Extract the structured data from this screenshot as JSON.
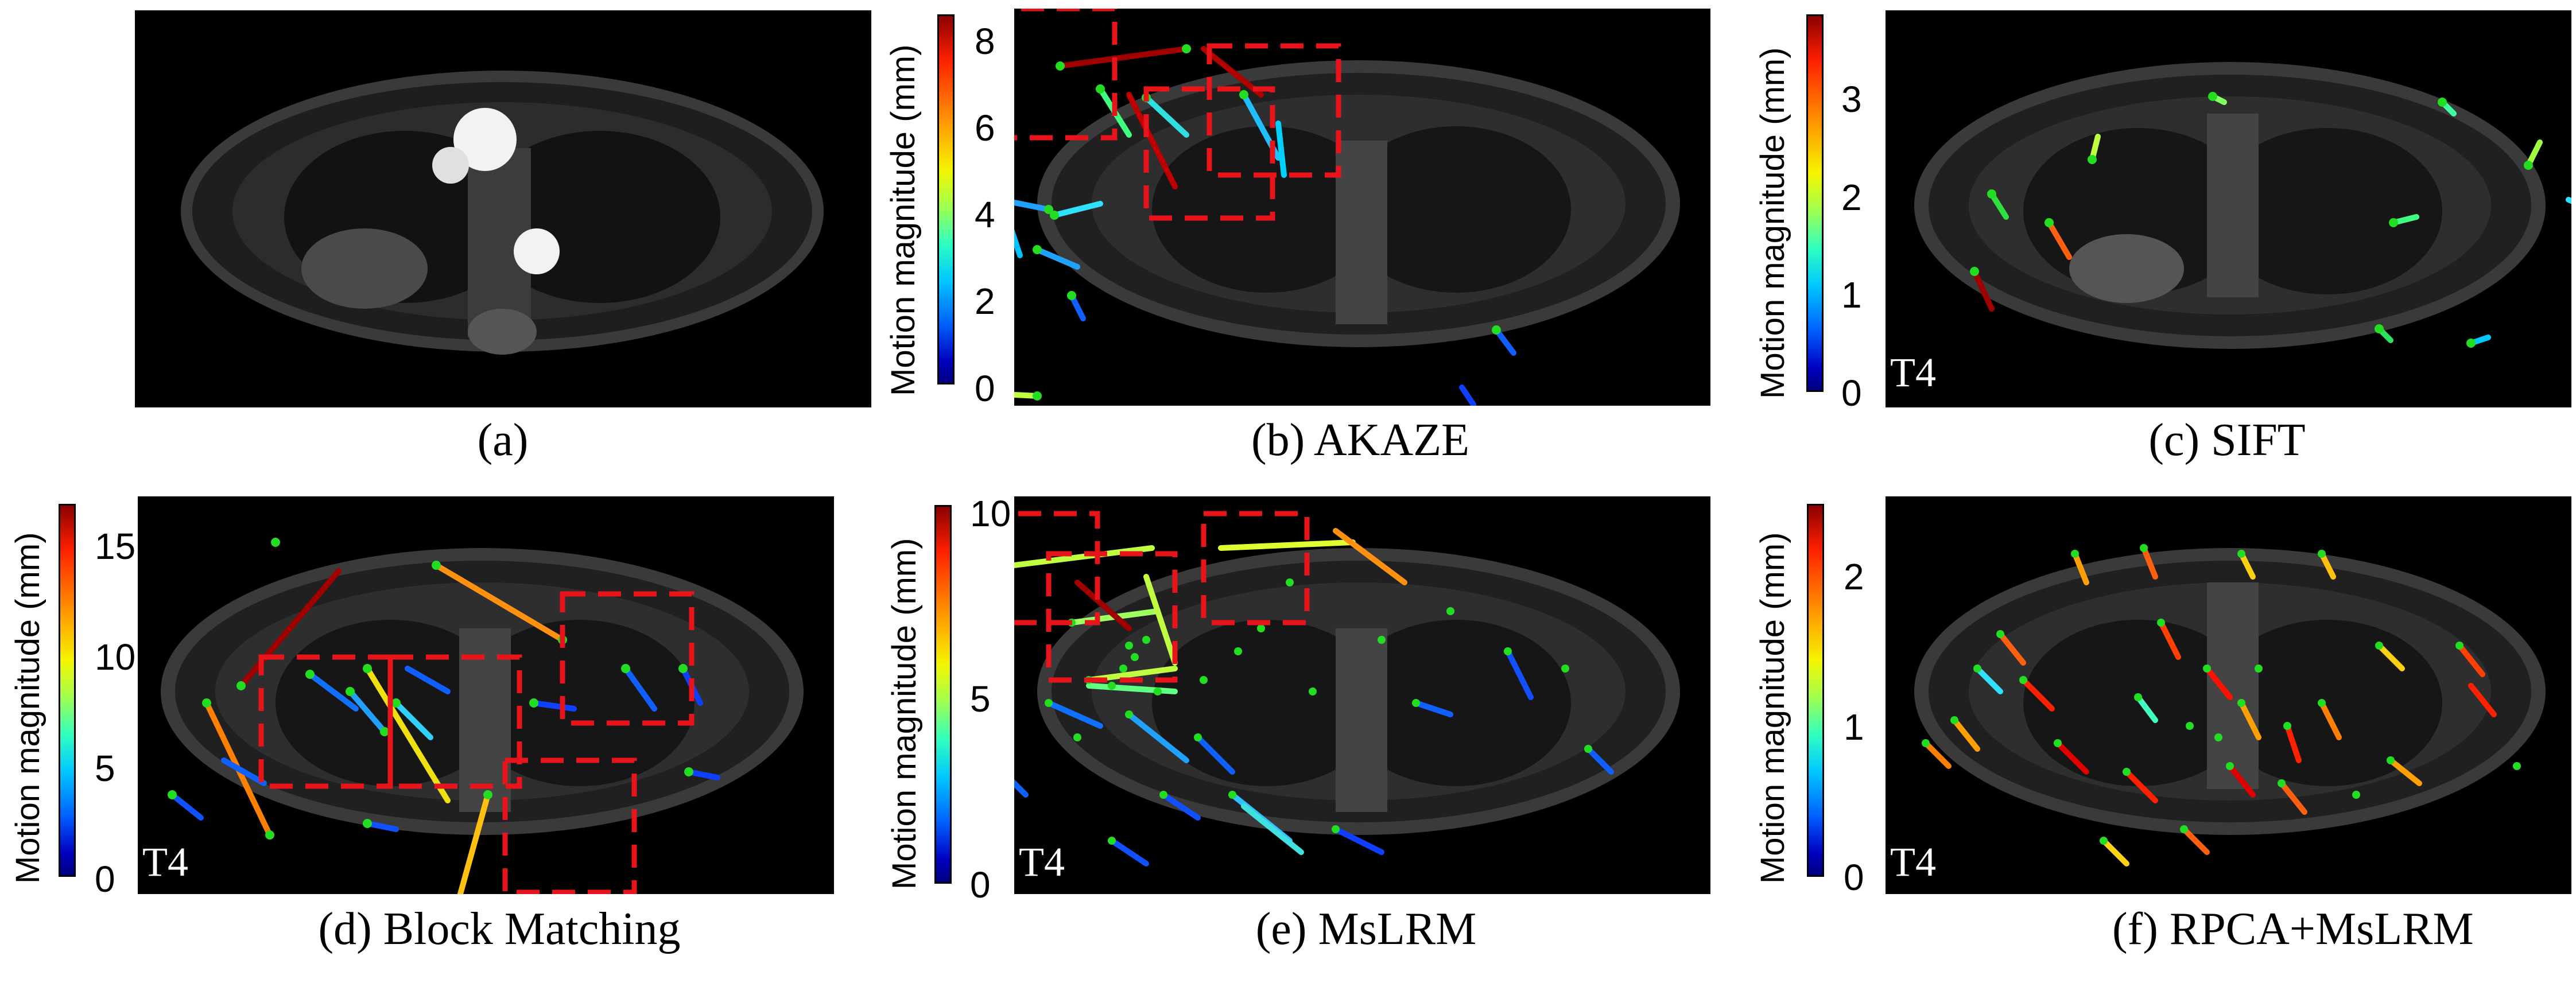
{
  "figure": {
    "panels": [
      {
        "id": "a",
        "caption": "(a)",
        "method": "",
        "overlay_label": ""
      },
      {
        "id": "b",
        "caption": "(b) AKAZE",
        "overlay_label": "",
        "colorbar": {
          "label": "Motion magnitude (mm)",
          "ticks": [
            "0",
            "2",
            "4",
            "6",
            "8"
          ],
          "range": [
            0,
            8.6
          ]
        }
      },
      {
        "id": "c",
        "caption": "(c) SIFT",
        "overlay_label": "T4",
        "colorbar": {
          "label": "Motion magnitude (mm)",
          "ticks": [
            "0",
            "1",
            "2",
            "3"
          ],
          "range": [
            0,
            3.9
          ]
        }
      },
      {
        "id": "d",
        "caption": "(d) Block Matching",
        "overlay_label": "T4",
        "colorbar": {
          "label": "Motion magnitude (mm)",
          "ticks": [
            "0",
            "5",
            "10",
            "15"
          ],
          "range": [
            0,
            16.8
          ]
        }
      },
      {
        "id": "e",
        "caption": "(e) MsLRM",
        "overlay_label": "T4",
        "colorbar": {
          "label": "Motion magnitude (mm)",
          "ticks": [
            "0",
            "5",
            "10"
          ],
          "range": [
            0,
            10.3
          ]
        }
      },
      {
        "id": "f",
        "caption": "(f) RPCA+MsLRM",
        "overlay_label": "T4",
        "colorbar": {
          "label": "Motion magnitude (mm)",
          "ticks": [
            "0",
            "1",
            "2"
          ],
          "range": [
            0,
            2.5
          ]
        }
      }
    ],
    "colors": {
      "roi_box": "#e8141c",
      "keypoint": "#22dd22",
      "background": "#000000"
    }
  }
}
